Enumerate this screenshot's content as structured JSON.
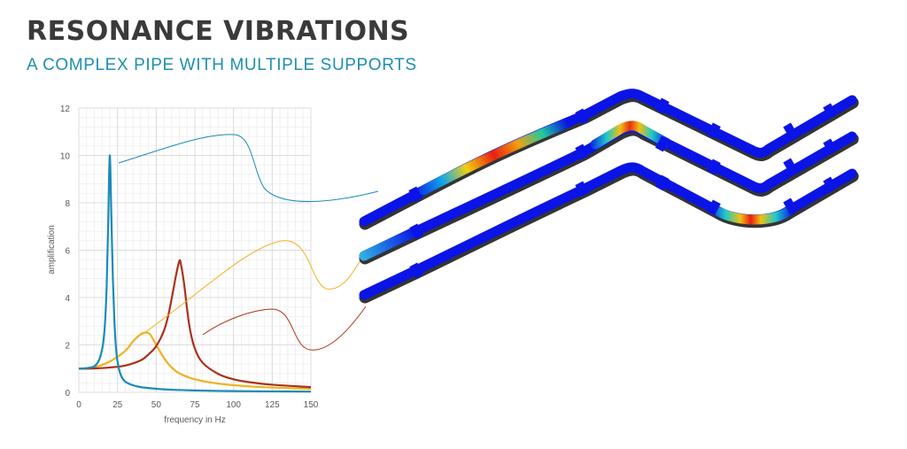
{
  "header": {
    "title": "RESONANCE VIBRATIONS",
    "subtitle": "A COMPLEX PIPE WITH MULTIPLE SUPPORTS"
  },
  "colors": {
    "blue": "#1a8ab8",
    "yellow": "#efb21f",
    "red": "#a8321a",
    "pipe": "#0a14e6",
    "grid_major": "#dcdcdc",
    "grid_minor": "#f0f0f0"
  },
  "chart_data": {
    "type": "line",
    "title": "",
    "xlabel": "frequency in Hz",
    "ylabel": "amplification",
    "xlim": [
      0,
      150
    ],
    "ylim": [
      0,
      12
    ],
    "xticks": [
      0,
      25,
      50,
      75,
      100,
      125,
      150
    ],
    "yticks": [
      0,
      2,
      4,
      6,
      8,
      10,
      12
    ],
    "grid": true,
    "series": [
      {
        "color": "#1a8ab8",
        "points": [
          [
            0,
            1.0
          ],
          [
            5,
            1.02
          ],
          [
            10,
            1.1
          ],
          [
            13,
            1.35
          ],
          [
            15,
            1.8
          ],
          [
            16,
            2.2
          ],
          [
            17,
            3.0
          ],
          [
            18,
            4.5
          ],
          [
            19,
            7.2
          ],
          [
            20,
            10.0
          ],
          [
            21,
            7.5
          ],
          [
            22,
            4.8
          ],
          [
            23,
            3.0
          ],
          [
            24,
            1.9
          ],
          [
            25,
            1.3
          ],
          [
            27,
            0.75
          ],
          [
            30,
            0.45
          ],
          [
            35,
            0.3
          ],
          [
            40,
            0.22
          ],
          [
            50,
            0.15
          ],
          [
            60,
            0.11
          ],
          [
            75,
            0.08
          ],
          [
            100,
            0.05
          ],
          [
            125,
            0.04
          ],
          [
            150,
            0.03
          ]
        ]
      },
      {
        "color": "#efb21f",
        "points": [
          [
            0,
            1.0
          ],
          [
            10,
            1.06
          ],
          [
            20,
            1.3
          ],
          [
            30,
            1.75
          ],
          [
            35,
            2.15
          ],
          [
            40,
            2.45
          ],
          [
            43,
            2.52
          ],
          [
            46,
            2.45
          ],
          [
            50,
            2.0
          ],
          [
            55,
            1.45
          ],
          [
            60,
            1.05
          ],
          [
            65,
            0.8
          ],
          [
            75,
            0.55
          ],
          [
            90,
            0.37
          ],
          [
            110,
            0.25
          ],
          [
            130,
            0.19
          ],
          [
            150,
            0.15
          ]
        ]
      },
      {
        "color": "#a8321a",
        "points": [
          [
            0,
            1.0
          ],
          [
            10,
            1.01
          ],
          [
            20,
            1.05
          ],
          [
            30,
            1.13
          ],
          [
            40,
            1.35
          ],
          [
            45,
            1.6
          ],
          [
            50,
            1.95
          ],
          [
            55,
            2.6
          ],
          [
            58,
            3.3
          ],
          [
            61,
            4.3
          ],
          [
            63,
            5.0
          ],
          [
            65,
            5.55
          ],
          [
            66,
            5.4
          ],
          [
            68,
            4.6
          ],
          [
            70,
            3.5
          ],
          [
            72,
            2.6
          ],
          [
            75,
            1.85
          ],
          [
            80,
            1.25
          ],
          [
            90,
            0.78
          ],
          [
            100,
            0.55
          ],
          [
            110,
            0.43
          ],
          [
            125,
            0.32
          ],
          [
            150,
            0.22
          ]
        ]
      }
    ]
  }
}
